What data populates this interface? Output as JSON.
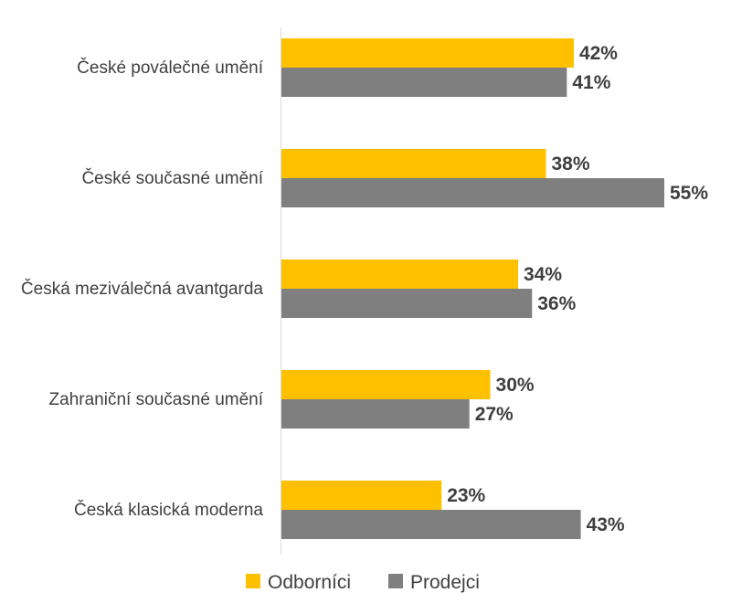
{
  "chart_data": {
    "type": "bar",
    "orientation": "horizontal",
    "categories": [
      "České poválečné umění",
      "České současné umění",
      "Česká meziválečná avantgarda",
      "Zahraniční současné umění",
      "Česká klasická moderna"
    ],
    "series": [
      {
        "name": "Odborníci",
        "color": "#FFC000",
        "values": [
          42,
          38,
          34,
          30,
          23
        ],
        "labels": [
          "42%",
          "38%",
          "34%",
          "30%",
          "23%"
        ]
      },
      {
        "name": "Prodejci",
        "color": "#7F7F7F",
        "values": [
          41,
          55,
          36,
          27,
          43
        ],
        "labels": [
          "41%",
          "55%",
          "36%",
          "27%",
          "43%"
        ]
      }
    ],
    "xlim": [
      0,
      60
    ],
    "grid": false,
    "legend_position": "bottom",
    "title": "",
    "xlabel": "",
    "ylabel": ""
  }
}
